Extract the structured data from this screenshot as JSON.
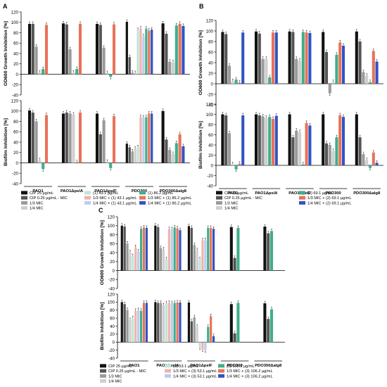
{
  "palette": {
    "black": "#111111",
    "dark_gray": "#555555",
    "mid_gray": "#9a9a9a",
    "light_gray": "#cfcfcf",
    "light_green": "#bfe6d6",
    "pink": "#f2b2ad",
    "light_blue": "#b9cdee",
    "green": "#3fae8a",
    "red_orange": "#e8735a",
    "blue": "#3154c4"
  },
  "panels": [
    {
      "letter": "A",
      "legend_compound": "(1)",
      "legend": [
        {
          "label": "CIP 25 µg/mL",
          "color": "black"
        },
        {
          "label": "CIP 0.25 µg/mL - MIC",
          "color": "dark_gray"
        },
        {
          "label": "1/3 MIC",
          "color": "mid_gray"
        },
        {
          "label": "1/4 MIC",
          "color": "light_gray"
        },
        {
          "label": "(1) 43.1 µg/mL",
          "color": "light_green"
        },
        {
          "label": "1/3 MIC + (1) 43.1 µg/mL",
          "color": "pink"
        },
        {
          "label": "1/4 MIC + (1) 43.1 µg/mL",
          "color": "light_blue"
        },
        {
          "label": "(1) 86.2 µg/mL",
          "color": "green"
        },
        {
          "label": "1/3 MIC + (1) 86.2 µg/mL",
          "color": "red_orange"
        },
        {
          "label": "1/4 MIC + (1) 86.2 µg/mL",
          "color": "blue"
        }
      ]
    },
    {
      "letter": "B",
      "legend": [
        {
          "label": "CIP 25 µg/mL",
          "color": "black"
        },
        {
          "label": "CIP 0.25 µg/mL - MIC",
          "color": "dark_gray"
        },
        {
          "label": "1/3 MIC",
          "color": "mid_gray"
        },
        {
          "label": "1/4 MIC",
          "color": "light_gray"
        },
        {
          "label": "(2) 69.1 µg/mL",
          "color": "green"
        },
        {
          "label": "1/3 MIC + (2) 69.1 µg/mL",
          "color": "red_orange"
        },
        {
          "label": "1/4 MIC + (2) 69.1 µg/mL",
          "color": "blue"
        }
      ]
    },
    {
      "letter": "C",
      "legend": [
        {
          "label": "CIP 25 µg/mL",
          "color": "black"
        },
        {
          "label": "CIP 0.25 µg/mL - MIC",
          "color": "dark_gray"
        },
        {
          "label": "1/3 MIC",
          "color": "mid_gray"
        },
        {
          "label": "1/4 MIC",
          "color": "light_gray"
        },
        {
          "label": "(3) 53.1 µg/mL",
          "color": "light_green"
        },
        {
          "label": "1/3 MIC + (3) 53.1 µg/mL",
          "color": "pink"
        },
        {
          "label": "1/4 MIC + (3) 53.1 µg/mL",
          "color": "light_blue"
        },
        {
          "label": "(3) 106.2 µg/mL",
          "color": "green"
        },
        {
          "label": "1/3 MIC + (3) 106.2 µg/mL",
          "color": "red_orange"
        },
        {
          "label": "1/4 MIC + (3) 106.2 µg/mL",
          "color": "blue"
        }
      ]
    }
  ],
  "chart_data": [
    {
      "id": "A-top",
      "type": "bar",
      "panel": "A",
      "ylabel": "OD600 Growth Inhibition [%]",
      "ylim": [
        -40,
        120
      ],
      "yticks": [
        -40,
        -20,
        0,
        20,
        40,
        60,
        80,
        100,
        120
      ],
      "groups": [
        {
          "label": "PAO1",
          "colors": [
            "black",
            "dark_gray",
            "mid_gray",
            "light_gray",
            "green",
            "red_orange"
          ],
          "values": [
            97,
            97,
            53,
            3,
            10,
            95
          ]
        },
        {
          "label": "PAO1ΔpslA",
          "colors": [
            "black",
            "dark_gray",
            "mid_gray",
            "light_gray",
            "green",
            "red_orange"
          ],
          "values": [
            98,
            96,
            48,
            3,
            10,
            97
          ]
        },
        {
          "label": "PAO1ΔpelF",
          "colors": [
            "black",
            "dark_gray",
            "mid_gray",
            "light_gray",
            "green",
            "red_orange"
          ],
          "values": [
            97,
            95,
            51,
            2,
            -5,
            96
          ]
        },
        {
          "label": "PDO300",
          "colors": [
            "black",
            "dark_gray",
            "mid_gray",
            "light_gray",
            "light_green",
            "pink",
            "light_blue",
            "green",
            "red_orange",
            "blue"
          ],
          "values": [
            101,
            33,
            3,
            2,
            85,
            88,
            73,
            88,
            84,
            86
          ]
        },
        {
          "label": "PDO300Δalg8",
          "colors": [
            "black",
            "dark_gray",
            "mid_gray",
            "light_gray",
            "green",
            "red_orange",
            "blue"
          ],
          "values": [
            98,
            78,
            24,
            23,
            94,
            97,
            93
          ]
        }
      ]
    },
    {
      "id": "A-bottom",
      "type": "bar",
      "panel": "A",
      "ylabel": "Biofilm Inhibition [%]",
      "ylim": [
        -40,
        120
      ],
      "yticks": [
        -40,
        -20,
        0,
        20,
        40,
        60,
        80,
        100,
        120
      ],
      "groups": [
        {
          "label": "PAO1",
          "colors": [
            "black",
            "dark_gray",
            "mid_gray",
            "light_gray",
            "green",
            "red_orange"
          ],
          "values": [
            101,
            97,
            80,
            5,
            -12,
            92
          ]
        },
        {
          "label": "PAO1ΔpslA",
          "colors": [
            "black",
            "dark_gray",
            "mid_gray",
            "light_gray",
            "green",
            "red_orange"
          ],
          "values": [
            95,
            97,
            95,
            93,
            1,
            97
          ]
        },
        {
          "label": "PAO1ΔpelF",
          "colors": [
            "black",
            "dark_gray",
            "mid_gray",
            "light_gray",
            "green",
            "red_orange"
          ],
          "values": [
            95,
            55,
            82,
            2,
            -10,
            90
          ]
        },
        {
          "label": "PDO300",
          "colors": [
            "black",
            "dark_gray",
            "mid_gray",
            "light_gray",
            "light_green",
            "pink",
            "light_blue",
            "green",
            "red_orange",
            "blue"
          ],
          "values": [
            37,
            30,
            22,
            27,
            30,
            88,
            87,
            88,
            95,
            95
          ]
        },
        {
          "label": "PDO300Δalg8",
          "colors": [
            "black",
            "dark_gray",
            "mid_gray",
            "light_gray",
            "green",
            "red_orange",
            "blue"
          ],
          "values": [
            100,
            45,
            25,
            17,
            38,
            55,
            32
          ]
        }
      ]
    },
    {
      "id": "B-top",
      "type": "bar",
      "panel": "B",
      "ylabel": "OD600 Growth Inhibition [%]",
      "ylim": [
        -40,
        120
      ],
      "yticks": [
        -40,
        -20,
        0,
        20,
        40,
        60,
        80,
        100,
        120
      ],
      "groups": [
        {
          "label": "PAO1",
          "colors": [
            "black",
            "dark_gray",
            "mid_gray",
            "light_gray",
            "green",
            "red_orange",
            "blue"
          ],
          "values": [
            98,
            94,
            34,
            5,
            8,
            2,
            97
          ]
        },
        {
          "label": "PAO1ΔpslA",
          "colors": [
            "black",
            "dark_gray",
            "mid_gray",
            "light_gray",
            "green",
            "red_orange",
            "blue"
          ],
          "values": [
            99,
            95,
            47,
            47,
            12,
            97,
            97
          ]
        },
        {
          "label": "PAO1ΔpelF",
          "colors": [
            "black",
            "dark_gray",
            "mid_gray",
            "light_gray",
            "green",
            "red_orange",
            "blue"
          ],
          "values": [
            99,
            98,
            47,
            44,
            98,
            97,
            96
          ]
        },
        {
          "label": "PDO300",
          "colors": [
            "black",
            "dark_gray",
            "mid_gray",
            "light_gray",
            "green",
            "red_orange",
            "blue"
          ],
          "values": [
            98,
            60,
            -18,
            3,
            55,
            78,
            72
          ]
        },
        {
          "label": "PDO300Δalg8",
          "colors": [
            "black",
            "dark_gray",
            "mid_gray",
            "light_gray",
            "green",
            "red_orange",
            "blue"
          ],
          "values": [
            99,
            80,
            22,
            15,
            3,
            62,
            42
          ]
        }
      ]
    },
    {
      "id": "B-bottom",
      "type": "bar",
      "panel": "B",
      "ylabel": "Biofilm Inhibition [%]",
      "ylim": [
        -40,
        120
      ],
      "yticks": [
        -40,
        -20,
        0,
        20,
        40,
        60,
        80,
        100,
        120
      ],
      "groups": [
        {
          "label": "PAO1",
          "colors": [
            "black",
            "dark_gray",
            "mid_gray",
            "light_gray",
            "green",
            "red_orange",
            "blue"
          ],
          "values": [
            100,
            98,
            63,
            2,
            -8,
            3,
            98
          ]
        },
        {
          "label": "PAO1ΔpslA",
          "colors": [
            "black",
            "dark_gray",
            "mid_gray",
            "light_gray",
            "green",
            "red_orange",
            "blue"
          ],
          "values": [
            100,
            98,
            96,
            93,
            95,
            91,
            97
          ]
        },
        {
          "label": "PAO1ΔpelF",
          "colors": [
            "black",
            "dark_gray",
            "mid_gray",
            "light_gray",
            "green",
            "red_orange",
            "blue"
          ],
          "values": [
            100,
            55,
            68,
            65,
            2,
            83,
            78
          ]
        },
        {
          "label": "PDO300",
          "colors": [
            "black",
            "dark_gray",
            "mid_gray",
            "light_gray",
            "green",
            "red_orange",
            "blue"
          ],
          "values": [
            100,
            43,
            40,
            28,
            55,
            98,
            95
          ]
        },
        {
          "label": "PDO300Δalg8",
          "colors": [
            "black",
            "dark_gray",
            "mid_gray",
            "light_gray",
            "green",
            "red_orange",
            "blue"
          ],
          "values": [
            100,
            55,
            22,
            10,
            -5,
            25,
            5
          ]
        }
      ]
    },
    {
      "id": "C-top",
      "type": "bar",
      "panel": "C",
      "ylabel": "OD600 Growth Inhibition [%]",
      "ylim": [
        -40,
        120
      ],
      "yticks": [
        -40,
        -20,
        0,
        20,
        40,
        60,
        80,
        100,
        120
      ],
      "groups": [
        {
          "label": "PAO1",
          "colors": [
            "black",
            "dark_gray",
            "mid_gray",
            "light_gray",
            "light_green",
            "pink",
            "light_blue",
            "green",
            "red_orange",
            "blue"
          ],
          "values": [
            100,
            98,
            60,
            41,
            32,
            52,
            42,
            93,
            96,
            95
          ]
        },
        {
          "label": "PAO1ΔpslA",
          "colors": [
            "black",
            "dark_gray",
            "mid_gray",
            "light_gray",
            "light_green",
            "pink",
            "light_blue",
            "green",
            "red_orange",
            "blue"
          ],
          "values": [
            100,
            97,
            50,
            47,
            25,
            92,
            92,
            96,
            94,
            90
          ]
        },
        {
          "label": "PAO1ΔpelF",
          "colors": [
            "black",
            "dark_gray",
            "mid_gray",
            "light_gray",
            "light_green",
            "pink",
            "light_blue",
            "green",
            "red_orange",
            "blue"
          ],
          "values": [
            99,
            95,
            57,
            45,
            25,
            67,
            68,
            95,
            95,
            93
          ]
        },
        {
          "label": "PDO300",
          "colors": [
            "black",
            "dark_gray",
            "green"
          ],
          "values": [
            97,
            28,
            95
          ]
        },
        {
          "label": "PDO300Δalg8",
          "colors": [
            "black",
            "dark_gray",
            "green"
          ],
          "values": [
            98,
            83,
            88
          ]
        }
      ]
    },
    {
      "id": "C-bottom",
      "type": "bar",
      "panel": "C",
      "ylabel": "Biofilm Inhibition [%]",
      "ylim": [
        -40,
        120
      ],
      "yticks": [
        -40,
        -20,
        0,
        20,
        40,
        60,
        80,
        100,
        120
      ],
      "groups": [
        {
          "label": "PAO1",
          "colors": [
            "black",
            "dark_gray",
            "mid_gray",
            "light_gray",
            "light_green",
            "pink",
            "light_blue",
            "green",
            "red_orange",
            "blue"
          ],
          "values": [
            100,
            95,
            80,
            55,
            60,
            78,
            80,
            78,
            98,
            98
          ]
        },
        {
          "label": "PAO1ΔpslA",
          "colors": [
            "black",
            "dark_gray",
            "mid_gray",
            "light_gray",
            "light_green",
            "pink",
            "light_blue",
            "green",
            "red_orange",
            "blue"
          ],
          "values": [
            100,
            98,
            98,
            92,
            97,
            98,
            97,
            98,
            99,
            99
          ]
        },
        {
          "label": "PAO1ΔpelF",
          "colors": [
            "black",
            "dark_gray",
            "mid_gray",
            "light_gray",
            "light_green",
            "pink",
            "light_blue",
            "green",
            "red_orange",
            "blue"
          ],
          "values": [
            99,
            52,
            62,
            38,
            -13,
            -18,
            -20,
            38,
            65,
            15
          ]
        },
        {
          "label": "PDO300",
          "colors": [
            "black",
            "dark_gray",
            "green"
          ],
          "values": [
            95,
            22,
            98
          ]
        },
        {
          "label": "PDO300Δalg8",
          "colors": [
            "black",
            "dark_gray",
            "green"
          ],
          "values": [
            97,
            58,
            82
          ]
        }
      ]
    }
  ]
}
